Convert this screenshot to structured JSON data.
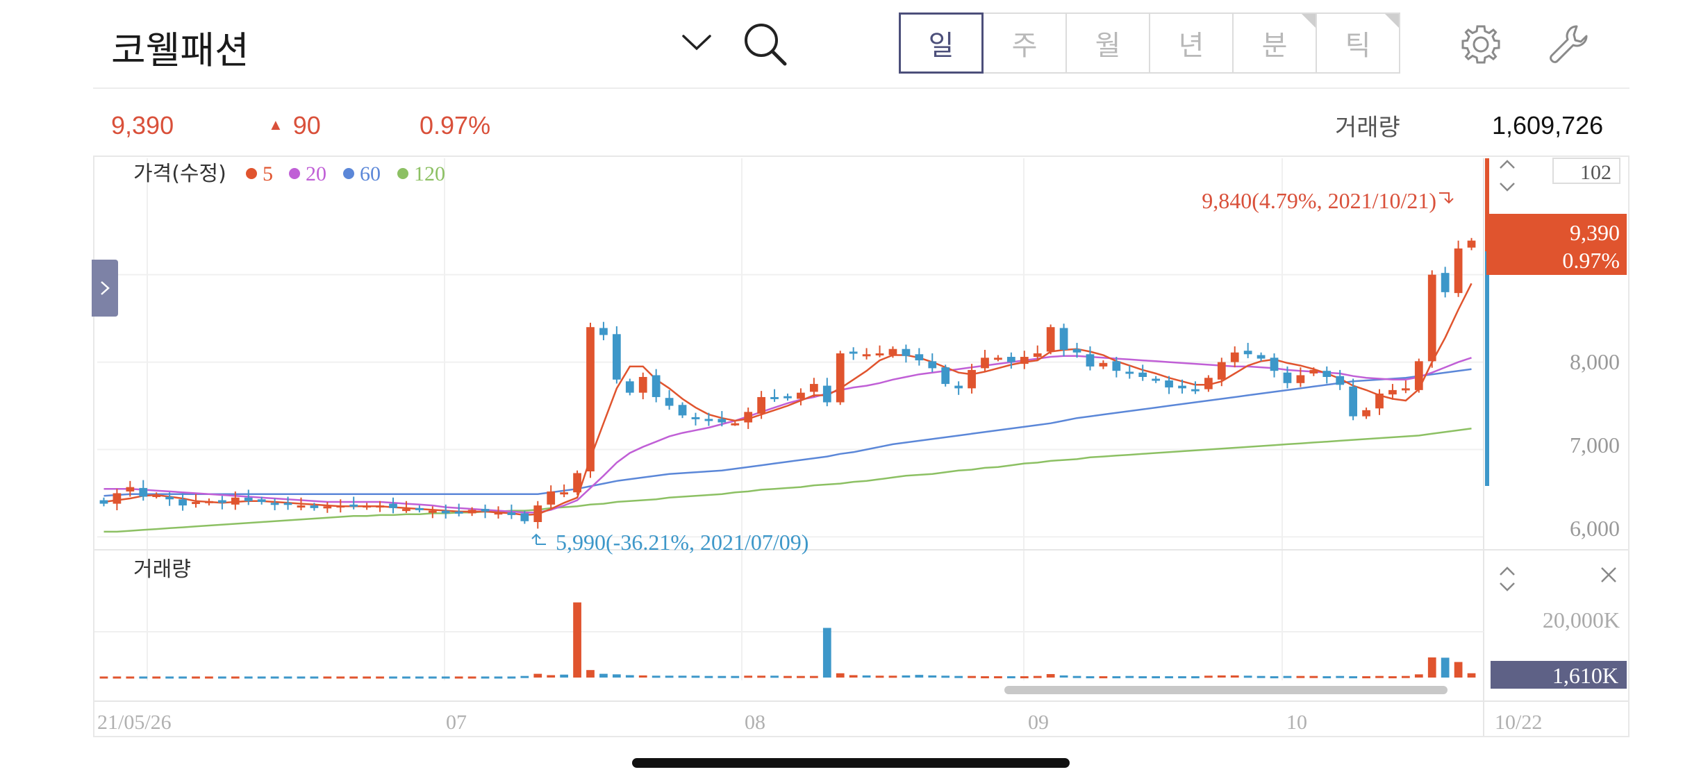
{
  "header": {
    "stock_name": "코웰패션",
    "periods": [
      {
        "label": "일",
        "active": true,
        "corner": false
      },
      {
        "label": "주",
        "active": false,
        "corner": false
      },
      {
        "label": "월",
        "active": false,
        "corner": false
      },
      {
        "label": "년",
        "active": false,
        "corner": false
      },
      {
        "label": "분",
        "active": false,
        "corner": true
      },
      {
        "label": "틱",
        "active": false,
        "corner": true
      }
    ],
    "icons": {
      "dropdown": "chevron-down-icon",
      "search": "search-icon",
      "settings": "gear-icon",
      "tools": "wrench-icon"
    }
  },
  "quote": {
    "price": "9,390",
    "change_arrow": "▲",
    "change": "90",
    "change_pct": "0.97%",
    "volume_label": "거래량",
    "volume": "1,609,726"
  },
  "legend": {
    "title": "가격(수정)",
    "ma": [
      {
        "label": "5",
        "color": "#e0542e"
      },
      {
        "label": "20",
        "color": "#c05fd6"
      },
      {
        "label": "60",
        "color": "#5b87d8"
      },
      {
        "label": "120",
        "color": "#8cc063"
      }
    ]
  },
  "price_panel": {
    "top_value": "102",
    "y_ticks": [
      "8,000",
      "7,000",
      "6,000"
    ],
    "current_price": "9,390",
    "current_pct": "0.97%",
    "high_annotation": "9,840(4.79%, 2021/10/21)",
    "low_annotation": "5,990(-36.21%, 2021/07/09)"
  },
  "volume_panel": {
    "label": "거래량",
    "y_tick": "20,000K",
    "current_volume": "1,610K"
  },
  "x_axis": {
    "labels": [
      "21/05/26",
      "07",
      "08",
      "09",
      "10",
      "10/22"
    ]
  },
  "colors": {
    "up": "#e0542e",
    "down": "#3d97c9",
    "accent": "#4c4f7a"
  },
  "chart_data": {
    "type": "candlestick",
    "ylim": [
      5900,
      10300
    ],
    "x_labels": [
      "21/05/26",
      "07",
      "08",
      "09",
      "10",
      "10/22"
    ],
    "high": {
      "value": 9840,
      "pct": 4.79,
      "date": "2021/10/21"
    },
    "low": {
      "value": 5990,
      "pct": -36.21,
      "date": "2021/07/09"
    },
    "close": [
      6380,
      6500,
      6570,
      6460,
      6480,
      6430,
      6360,
      6400,
      6410,
      6390,
      6450,
      6410,
      6400,
      6380,
      6370,
      6360,
      6330,
      6350,
      6360,
      6360,
      6360,
      6360,
      6330,
      6320,
      6310,
      6300,
      6270,
      6280,
      6310,
      6290,
      6280,
      6250,
      6180,
      6360,
      6520,
      6510,
      6730,
      8400,
      8310,
      7800,
      7650,
      7830,
      7600,
      7500,
      7390,
      7350,
      7330,
      7310,
      7300,
      7430,
      7600,
      7590,
      7590,
      7650,
      7750,
      7540,
      8100,
      8100,
      8090,
      8100,
      8150,
      8070,
      8020,
      7930,
      7750,
      7700,
      7910,
      8050,
      8050,
      8000,
      8060,
      8100,
      8400,
      8140,
      8110,
      7950,
      7990,
      7900,
      7870,
      7830,
      7790,
      7710,
      7700,
      7680,
      7820,
      8000,
      8110,
      8090,
      8040,
      7900,
      7760,
      7850,
      7910,
      7830,
      7740,
      7380,
      7450,
      7640,
      7680,
      7700,
      8010,
      9000,
      8800,
      9300,
      9390
    ],
    "ma5": [
      6400,
      6420,
      6440,
      6470,
      6480,
      6460,
      6440,
      6410,
      6400,
      6390,
      6400,
      6410,
      6410,
      6400,
      6390,
      6380,
      6370,
      6360,
      6350,
      6350,
      6350,
      6350,
      6340,
      6330,
      6320,
      6310,
      6300,
      6290,
      6290,
      6290,
      6280,
      6270,
      6250,
      6260,
      6320,
      6390,
      6450,
      6900,
      7300,
      7700,
      7950,
      7950,
      7800,
      7700,
      7580,
      7480,
      7400,
      7360,
      7330,
      7350,
      7400,
      7450,
      7500,
      7560,
      7620,
      7620,
      7700,
      7800,
      7900,
      8020,
      8080,
      8080,
      8050,
      8000,
      7940,
      7880,
      7860,
      7890,
      7930,
      7970,
      8000,
      8020,
      8120,
      8140,
      8150,
      8120,
      8080,
      8010,
      7960,
      7910,
      7870,
      7820,
      7780,
      7740,
      7740,
      7780,
      7870,
      7960,
      8010,
      8030,
      7990,
      7960,
      7920,
      7870,
      7810,
      7730,
      7680,
      7620,
      7580,
      7560,
      7690,
      8000,
      8280,
      8600,
      8900
    ],
    "ma20": [
      6550,
      6550,
      6550,
      6540,
      6530,
      6520,
      6510,
      6500,
      6490,
      6480,
      6470,
      6460,
      6450,
      6440,
      6430,
      6420,
      6410,
      6400,
      6400,
      6400,
      6400,
      6400,
      6390,
      6380,
      6370,
      6360,
      6340,
      6330,
      6320,
      6310,
      6300,
      6290,
      6280,
      6280,
      6310,
      6360,
      6420,
      6560,
      6700,
      6850,
      6960,
      7030,
      7090,
      7150,
      7190,
      7220,
      7250,
      7290,
      7330,
      7380,
      7430,
      7480,
      7530,
      7570,
      7600,
      7640,
      7680,
      7710,
      7730,
      7760,
      7800,
      7830,
      7860,
      7880,
      7900,
      7920,
      7940,
      7960,
      7980,
      8000,
      8020,
      8040,
      8060,
      8070,
      8070,
      8060,
      8050,
      8040,
      8030,
      8020,
      8010,
      8000,
      7990,
      7980,
      7970,
      7960,
      7950,
      7950,
      7940,
      7930,
      7910,
      7900,
      7890,
      7880,
      7870,
      7840,
      7820,
      7810,
      7800,
      7800,
      7830,
      7880,
      7940,
      8000,
      8050
    ],
    "ma60": [
      6470,
      6480,
      6490,
      6490,
      6490,
      6490,
      6490,
      6490,
      6490,
      6490,
      6490,
      6490,
      6490,
      6490,
      6490,
      6490,
      6490,
      6490,
      6490,
      6490,
      6490,
      6490,
      6490,
      6490,
      6490,
      6490,
      6490,
      6490,
      6490,
      6490,
      6490,
      6490,
      6490,
      6490,
      6510,
      6530,
      6550,
      6580,
      6610,
      6640,
      6660,
      6680,
      6700,
      6720,
      6730,
      6740,
      6750,
      6760,
      6780,
      6800,
      6820,
      6840,
      6860,
      6880,
      6900,
      6920,
      6950,
      6970,
      7000,
      7030,
      7060,
      7080,
      7100,
      7120,
      7140,
      7160,
      7180,
      7200,
      7220,
      7240,
      7260,
      7280,
      7300,
      7330,
      7360,
      7380,
      7400,
      7420,
      7440,
      7460,
      7480,
      7500,
      7520,
      7540,
      7560,
      7580,
      7600,
      7620,
      7640,
      7660,
      7680,
      7700,
      7720,
      7740,
      7760,
      7780,
      7790,
      7800,
      7810,
      7820,
      7840,
      7860,
      7880,
      7900,
      7920
    ],
    "ma120": [
      6060,
      6060,
      6070,
      6080,
      6090,
      6100,
      6110,
      6120,
      6130,
      6140,
      6150,
      6160,
      6170,
      6180,
      6190,
      6200,
      6210,
      6220,
      6230,
      6240,
      6240,
      6250,
      6250,
      6260,
      6260,
      6270,
      6270,
      6280,
      6280,
      6290,
      6290,
      6300,
      6300,
      6310,
      6330,
      6340,
      6350,
      6370,
      6380,
      6400,
      6410,
      6420,
      6430,
      6450,
      6460,
      6470,
      6480,
      6490,
      6510,
      6520,
      6540,
      6550,
      6560,
      6570,
      6590,
      6600,
      6610,
      6630,
      6640,
      6660,
      6680,
      6700,
      6710,
      6720,
      6740,
      6760,
      6770,
      6790,
      6800,
      6820,
      6840,
      6850,
      6870,
      6880,
      6890,
      6910,
      6920,
      6930,
      6940,
      6950,
      6960,
      6970,
      6980,
      6990,
      7000,
      7010,
      7020,
      7030,
      7040,
      7050,
      7060,
      7070,
      7080,
      7090,
      7100,
      7110,
      7120,
      7130,
      7140,
      7150,
      7160,
      7180,
      7200,
      7220,
      7240
    ],
    "volume_ylim": [
      0,
      30000
    ],
    "volume_k": [
      400,
      400,
      400,
      400,
      400,
      400,
      400,
      400,
      400,
      400,
      400,
      400,
      400,
      400,
      400,
      400,
      400,
      400,
      400,
      400,
      400,
      400,
      400,
      400,
      400,
      400,
      400,
      400,
      400,
      400,
      400,
      400,
      600,
      1400,
      900,
      1100,
      28000,
      2800,
      1400,
      1200,
      900,
      800,
      700,
      700,
      700,
      700,
      600,
      600,
      600,
      700,
      700,
      700,
      600,
      600,
      600,
      18500,
      1600,
      900,
      800,
      700,
      700,
      800,
      1000,
      800,
      700,
      600,
      600,
      500,
      500,
      500,
      500,
      600,
      1300,
      800,
      600,
      500,
      500,
      500,
      600,
      500,
      500,
      500,
      500,
      500,
      700,
      800,
      800,
      700,
      600,
      500,
      600,
      600,
      600,
      500,
      600,
      500,
      500,
      600,
      500,
      600,
      1200,
      7500,
      7400,
      5800,
      1610
    ]
  }
}
